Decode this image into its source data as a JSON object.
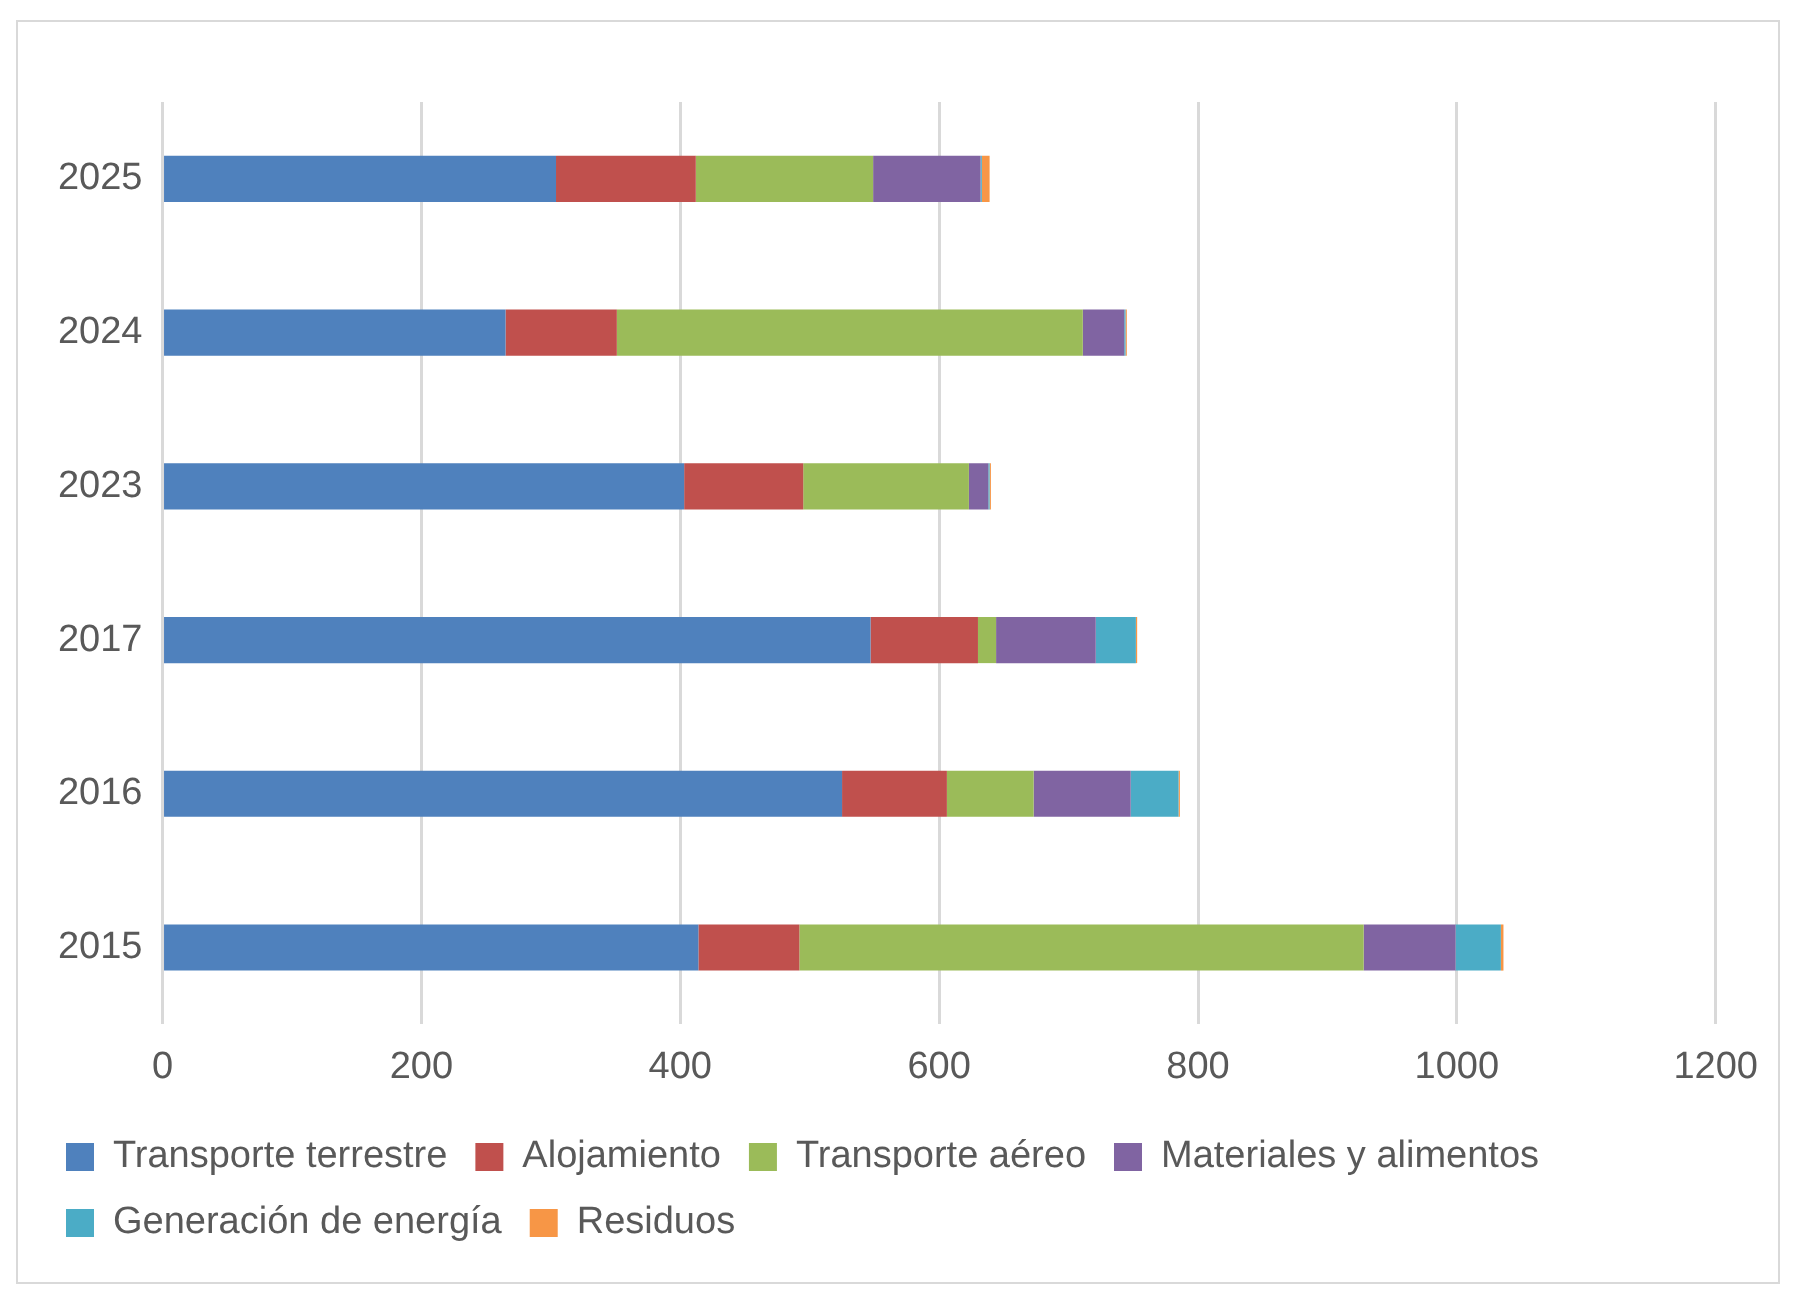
{
  "chart_data": {
    "type": "bar",
    "orientation": "horizontal",
    "stacked": true,
    "categories": [
      "2025",
      "2024",
      "2023",
      "2017",
      "2016",
      "2015"
    ],
    "series": [
      {
        "name": "Transporte terrestre",
        "color": "#4f81bd",
        "values": [
          304,
          265,
          403,
          547,
          525,
          414
        ]
      },
      {
        "name": "Alojamiento",
        "color": "#c0504d",
        "values": [
          108,
          86,
          92,
          83,
          81,
          78
        ]
      },
      {
        "name": "Transporte aéreo",
        "color": "#9bbb59",
        "values": [
          137,
          360,
          128,
          14,
          67,
          436
        ]
      },
      {
        "name": "Materiales y alimentos",
        "color": "#8064a2",
        "values": [
          83,
          32,
          15,
          77,
          75,
          71
        ]
      },
      {
        "name": "Generación de energía",
        "color": "#4bacc6",
        "values": [
          1,
          1,
          1,
          31,
          37,
          35
        ]
      },
      {
        "name": "Residuos",
        "color": "#f79646",
        "values": [
          6,
          1,
          1,
          1,
          1,
          2
        ]
      }
    ],
    "xlim": [
      0,
      1200
    ],
    "xticks": [
      0,
      200,
      400,
      600,
      800,
      1000,
      1200
    ],
    "grid": "x",
    "legend": "bottom"
  }
}
